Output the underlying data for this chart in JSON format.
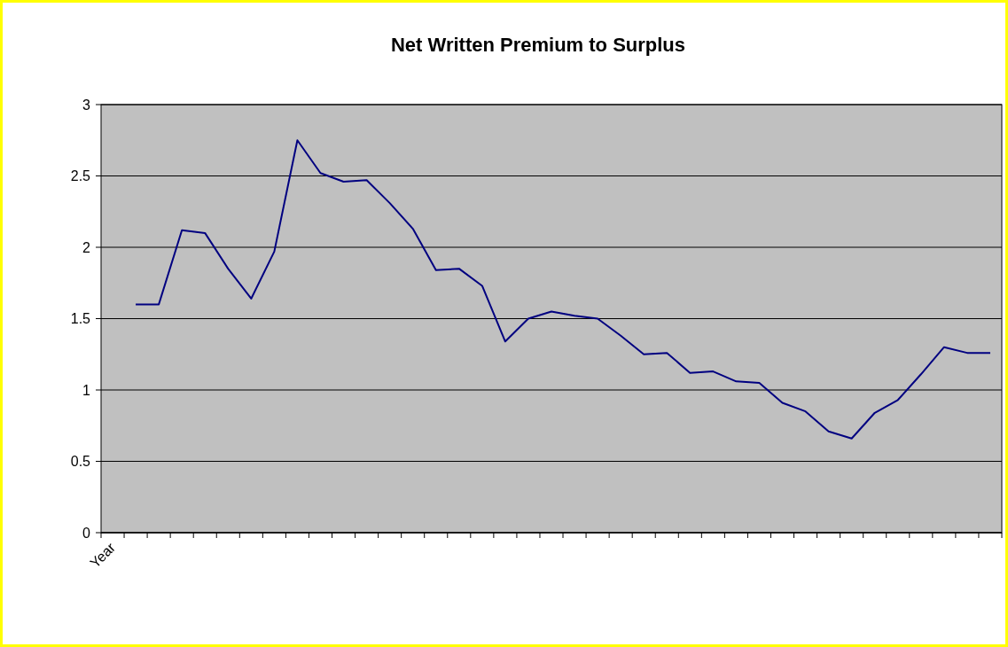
{
  "chart_data": {
    "type": "line",
    "title": "Net Written Premium to Surplus",
    "categories": [
      "Year",
      null,
      null,
      null,
      null,
      null,
      null,
      null,
      null,
      null,
      null,
      null,
      null,
      null,
      null,
      null,
      null,
      null,
      null,
      null,
      null,
      null,
      null,
      null,
      null,
      null,
      null,
      null,
      null,
      null,
      null,
      null,
      null,
      null,
      null,
      null,
      null,
      null,
      null
    ],
    "series": [
      {
        "color": "#000080",
        "values": [
          null,
          1.6,
          1.6,
          2.12,
          2.1,
          1.85,
          1.64,
          1.97,
          2.75,
          2.52,
          2.46,
          2.47,
          2.31,
          2.13,
          1.84,
          1.85,
          1.73,
          1.34,
          1.5,
          1.55,
          1.52,
          1.5,
          1.38,
          1.25,
          1.26,
          1.12,
          1.13,
          1.06,
          1.05,
          0.91,
          0.85,
          0.71,
          0.66,
          0.84,
          0.93,
          1.11,
          1.3,
          1.26,
          1.26
        ]
      }
    ],
    "ylim": [
      0,
      3
    ],
    "yticks": [
      0,
      0.5,
      1,
      1.5,
      2,
      2.5,
      3
    ],
    "grid": "y"
  }
}
